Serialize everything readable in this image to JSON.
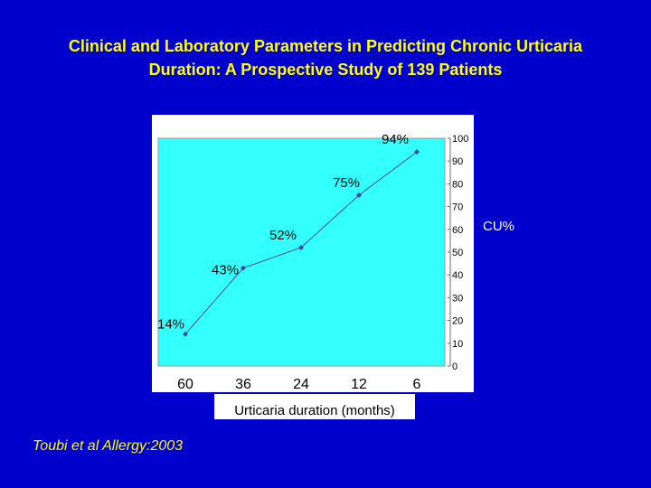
{
  "slide": {
    "title_line1": "Clinical and Laboratory Parameters in Predicting Chronic Urticaria",
    "title_line2": "Duration:  A Prospective Study of 139 Patients",
    "citation": "Toubi et al Allergy:2003"
  },
  "colors": {
    "background": "#0000cc",
    "title": "#ffff00",
    "plot_area": "#33ffff",
    "chart_frame": "#ffffff",
    "line": "#3f47a0",
    "text": "#000000",
    "legend_text": "#ffffff"
  },
  "chart_data": {
    "type": "line",
    "title": "",
    "xlabel": "Urticaria duration (months)",
    "ylabel": "",
    "categories": [
      "60",
      "36",
      "24",
      "12",
      "6"
    ],
    "series": [
      {
        "name": "CU%",
        "values": [
          14,
          43,
          52,
          75,
          94
        ],
        "data_labels": [
          "14%",
          "43%",
          "52%",
          "75%",
          "94%"
        ]
      }
    ],
    "ylim": [
      0,
      100
    ],
    "yticks": [
      "0",
      "10",
      "20",
      "30",
      "40",
      "50",
      "60",
      "70",
      "80",
      "90",
      "100"
    ],
    "y_axis_side": "right",
    "grid": false,
    "legend": "right"
  }
}
